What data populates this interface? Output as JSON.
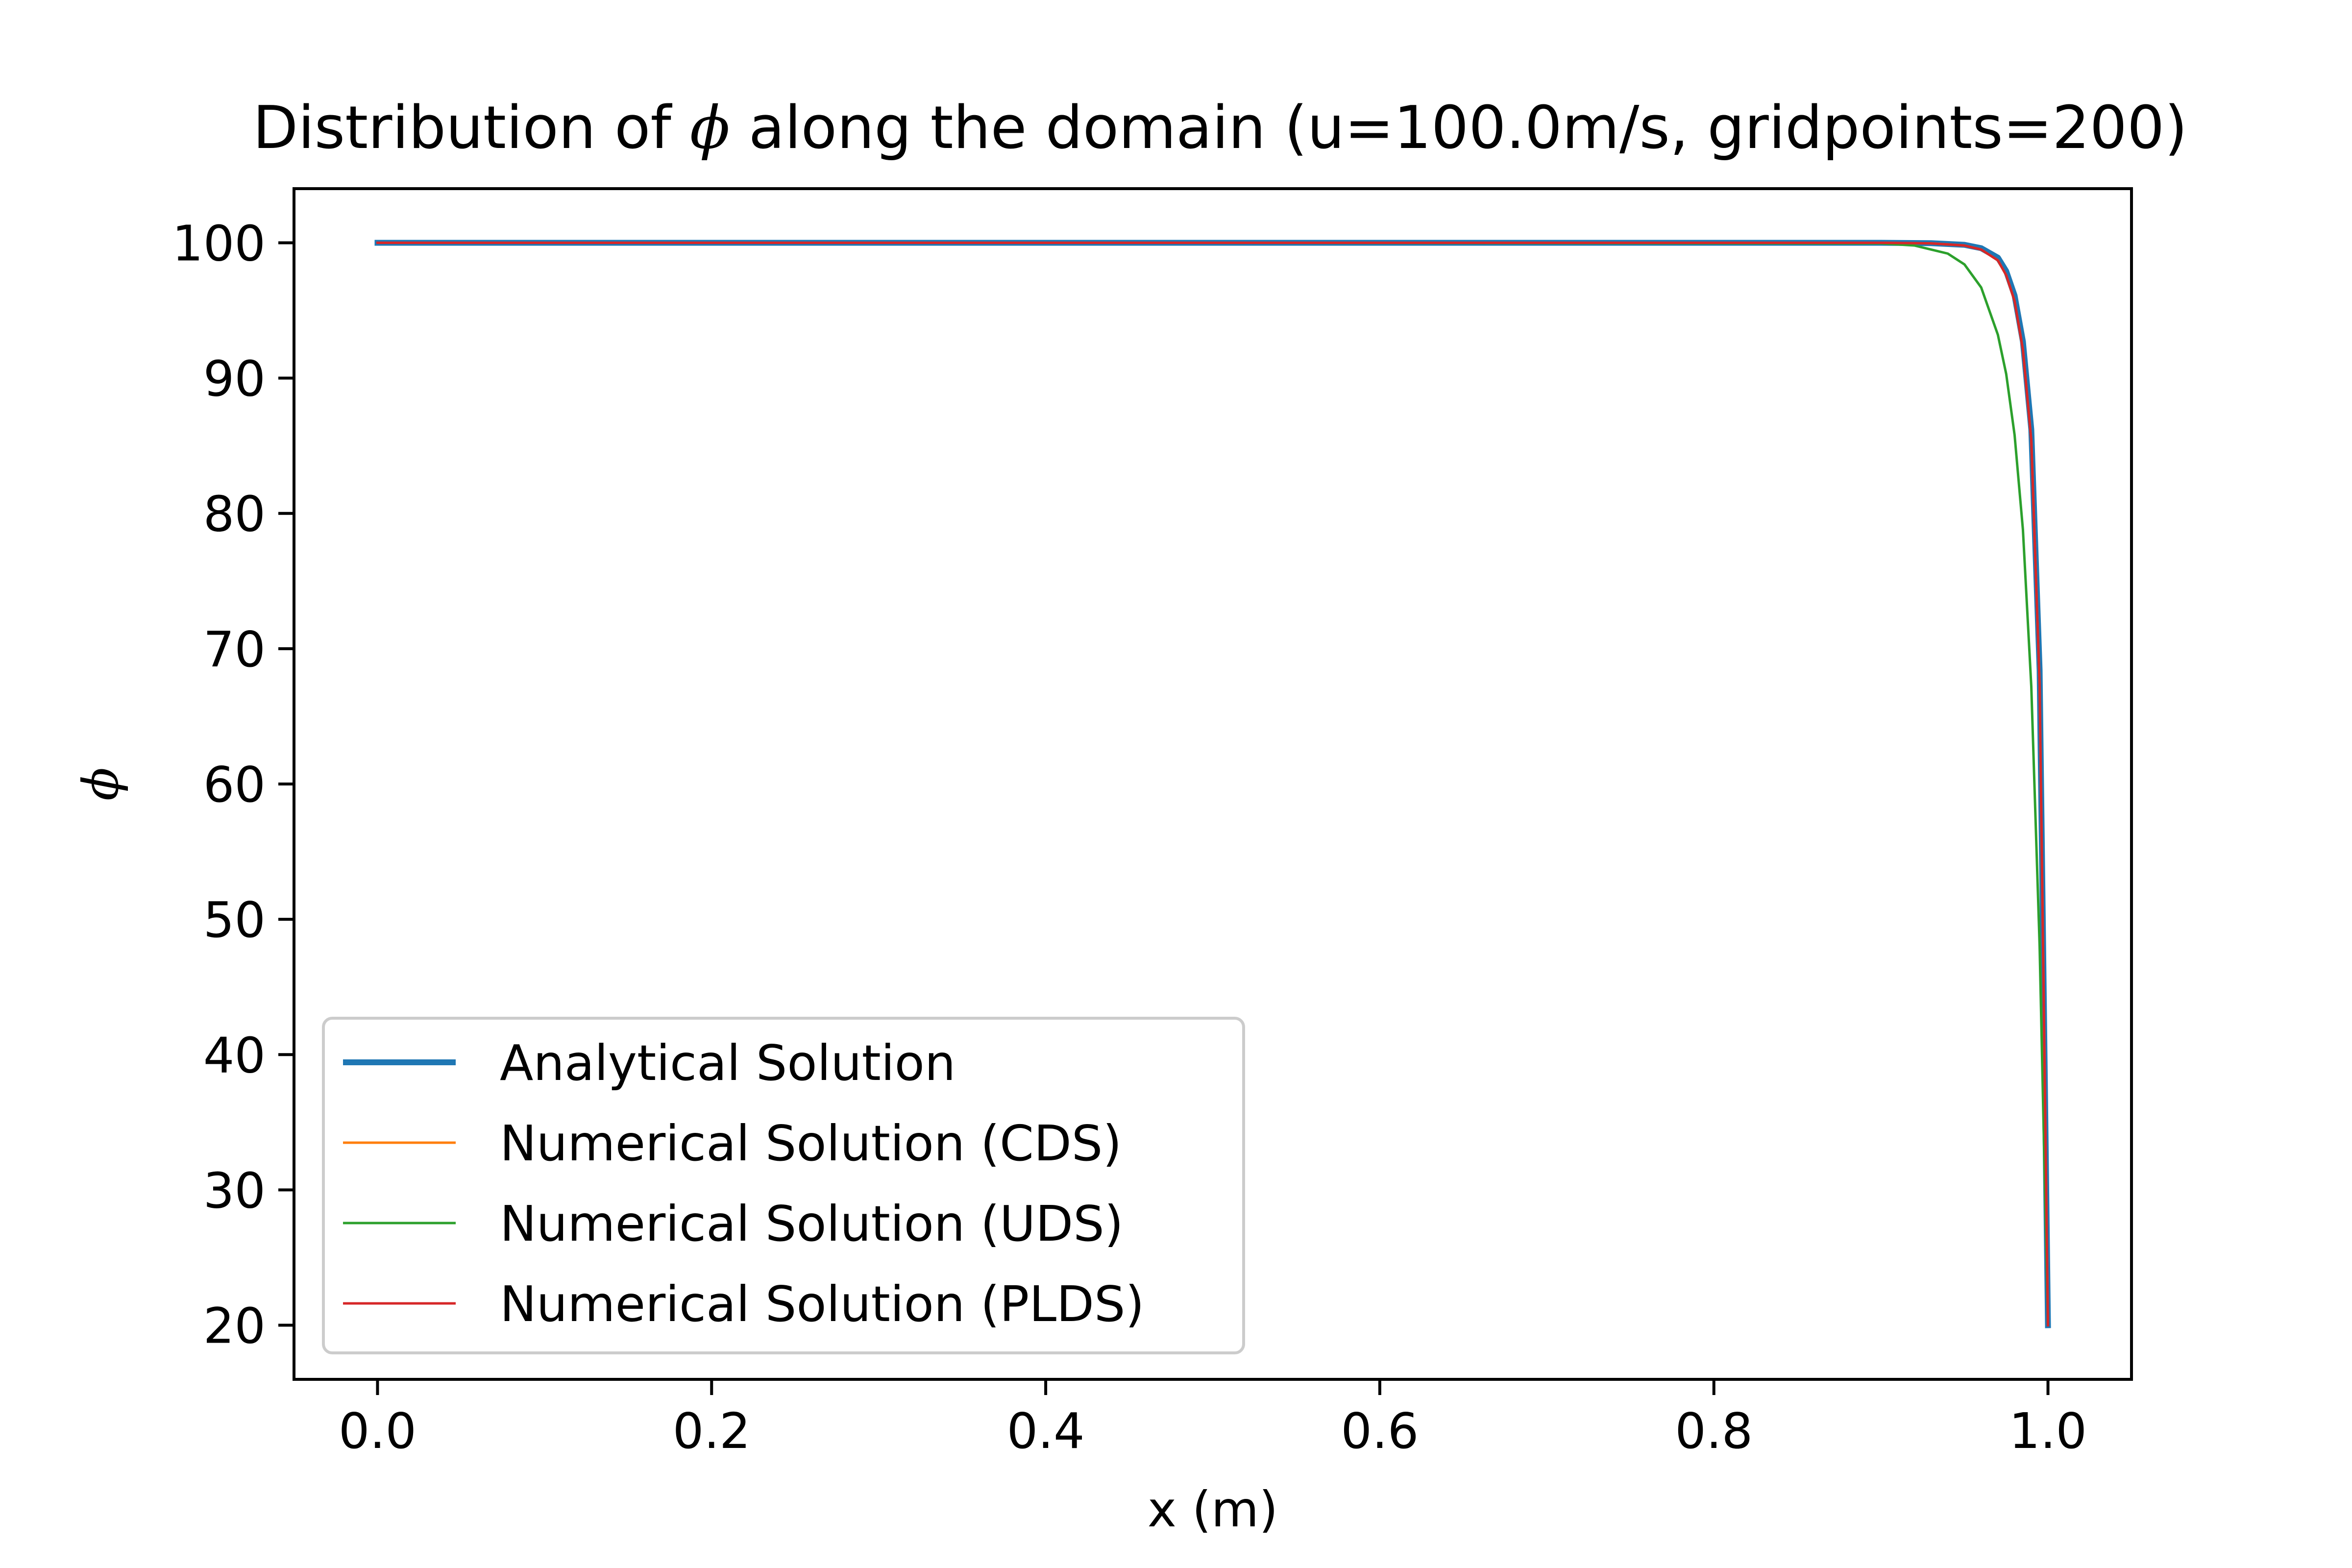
{
  "chart_data": {
    "type": "line",
    "title_prefix": "Distribution of ",
    "title_symbol": "ϕ",
    "title_suffix": " along the domain (u=100.0m/s, gridpoints=200)",
    "xlabel": "x (m)",
    "ylabel": "ϕ",
    "xlim": [
      -0.05,
      1.05
    ],
    "ylim": [
      16,
      104
    ],
    "xticks": [
      0.0,
      0.2,
      0.4,
      0.6,
      0.8,
      1.0
    ],
    "xtick_labels": [
      "0.0",
      "0.2",
      "0.4",
      "0.6",
      "0.8",
      "1.0"
    ],
    "yticks": [
      20,
      30,
      40,
      50,
      60,
      70,
      80,
      90,
      100
    ],
    "ytick_labels": [
      "20",
      "30",
      "40",
      "50",
      "60",
      "70",
      "80",
      "90",
      "100"
    ],
    "grid": false,
    "legend_position": "lower-left",
    "series": [
      {
        "name": "Analytical Solution",
        "color": "#1f77b4",
        "x": [
          0.0,
          0.5,
          0.9,
          0.93,
          0.95,
          0.96,
          0.97,
          0.975,
          0.98,
          0.985,
          0.99,
          0.995,
          1.0
        ],
        "y": [
          100,
          100,
          100,
          99.97,
          99.85,
          99.6,
          98.9,
          97.9,
          96.1,
          92.7,
          86.2,
          68.4,
          20
        ]
      },
      {
        "name": "Numerical Solution (CDS)",
        "color": "#ff7f0e",
        "x": [
          0.0,
          0.5,
          0.9,
          0.93,
          0.95,
          0.96,
          0.97,
          0.975,
          0.98,
          0.985,
          0.99,
          0.995,
          1.0
        ],
        "y": [
          100,
          100,
          100,
          99.96,
          99.8,
          99.5,
          98.7,
          97.6,
          95.7,
          92.1,
          85.4,
          67.3,
          20
        ]
      },
      {
        "name": "Numerical Solution (UDS)",
        "color": "#2ca02c",
        "x": [
          0.0,
          0.5,
          0.9,
          0.92,
          0.94,
          0.95,
          0.96,
          0.97,
          0.975,
          0.98,
          0.985,
          0.99,
          0.995,
          1.0
        ],
        "y": [
          100,
          100,
          99.95,
          99.8,
          99.2,
          98.4,
          96.7,
          93.2,
          90.3,
          85.8,
          78.8,
          67.2,
          48.0,
          20
        ]
      },
      {
        "name": "Numerical Solution (PLDS)",
        "color": "#d62728",
        "x": [
          0.0,
          0.5,
          0.9,
          0.93,
          0.95,
          0.96,
          0.97,
          0.975,
          0.98,
          0.985,
          0.99,
          0.995,
          1.0
        ],
        "y": [
          100,
          100,
          100,
          99.96,
          99.8,
          99.5,
          98.7,
          97.6,
          95.7,
          92.1,
          85.4,
          67.3,
          20
        ]
      }
    ]
  }
}
